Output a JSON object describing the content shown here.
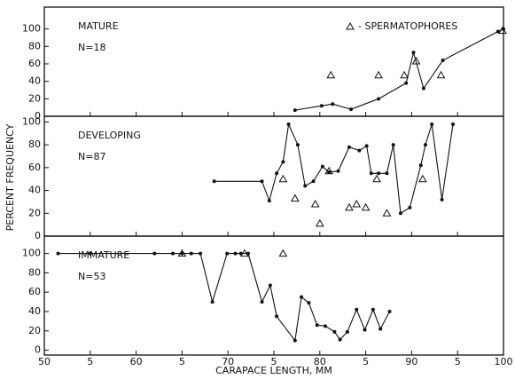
{
  "y_label": "PERCENT FREQUENCY",
  "x_label": "CARAPACE LENGTH, MM",
  "xlim": [
    50,
    100
  ],
  "xticks": [
    50,
    {
      "value": 55,
      "label": "5"
    },
    60,
    {
      "value": 65,
      "label": "5"
    },
    70,
    {
      "value": 75,
      "label": "5"
    },
    80,
    {
      "value": 85,
      "label": "5"
    },
    90,
    {
      "value": 95,
      "label": "5"
    },
    100
  ],
  "chart_data": [
    {
      "type": "line",
      "title": "MATURE",
      "n_label": "N=18",
      "ylim": [
        0,
        125
      ],
      "yticks": [
        0,
        20,
        40,
        60,
        80,
        100
      ],
      "series": [
        {
          "marker": "dot",
          "color": "#111111",
          "x": [
            77.3,
            80.2,
            81.4,
            83.4,
            86.4,
            89.4,
            90.2,
            91.3,
            93.4,
            99.4,
            100
          ],
          "values": [
            7,
            12,
            14,
            8,
            20,
            38,
            73,
            32,
            64,
            97,
            100
          ]
        },
        {
          "name": "- SPERMATOPHORES",
          "marker": "triangle",
          "color": "#111111",
          "x": [
            81.2,
            86.4,
            89.2,
            90.5,
            93.2,
            99.9
          ],
          "values": [
            47,
            47,
            47,
            63,
            47,
            98
          ]
        }
      ]
    },
    {
      "type": "line",
      "title": "DEVELOPING",
      "n_label": "N=87",
      "ylim": [
        0,
        105
      ],
      "yticks": [
        0,
        20,
        40,
        60,
        80,
        100
      ],
      "series": [
        {
          "marker": "dot",
          "color": "#111111",
          "x": [
            68.5,
            73.7,
            74.5,
            75.3,
            76,
            76.6,
            77.6,
            78.4,
            79.3,
            80.3,
            81,
            82,
            83.2,
            84.3,
            85.1,
            85.6,
            86.4,
            87.3,
            88,
            88.8,
            89.8,
            91,
            91.5,
            92.2,
            93.3,
            94.5
          ],
          "values": [
            48,
            48,
            31,
            55,
            65,
            98,
            80,
            44,
            48,
            61,
            56,
            57,
            78,
            75,
            79,
            55,
            55,
            55,
            80,
            20,
            25,
            62,
            80,
            98,
            32,
            98
          ]
        },
        {
          "marker": "triangle",
          "color": "#111111",
          "x": [
            76,
            77.3,
            79.5,
            80,
            81,
            83.2,
            84,
            85,
            86.2,
            87.3,
            91.2
          ],
          "values": [
            50,
            33,
            28,
            11,
            57,
            25,
            28,
            25,
            50,
            20,
            50
          ]
        }
      ]
    },
    {
      "type": "line",
      "title": "IMMATURE",
      "n_label": "N=53",
      "ylim": [
        -5,
        118
      ],
      "yticks": [
        0,
        20,
        40,
        60,
        80,
        100
      ],
      "series": [
        {
          "marker": "dot",
          "color": "#111111",
          "x": [
            51.5,
            55,
            62,
            64,
            65,
            66,
            67,
            68.3,
            69.9,
            70.8,
            71.4,
            72.2,
            73.7,
            74.6,
            75.3,
            77.3,
            78,
            78.8,
            79.7,
            80.6,
            81.6,
            82.2,
            83,
            84,
            84.9,
            85.8,
            86.6,
            87.6
          ],
          "values": [
            100,
            100,
            100,
            100,
            100,
            100,
            100,
            50,
            100,
            100,
            100,
            100,
            50,
            67,
            35,
            10,
            55,
            49,
            26,
            25,
            19,
            11,
            19,
            42,
            21,
            42,
            22,
            40
          ]
        },
        {
          "marker": "triangle",
          "color": "#111111",
          "x": [
            65,
            71.8,
            76
          ],
          "values": [
            100,
            100,
            100
          ]
        }
      ]
    }
  ]
}
